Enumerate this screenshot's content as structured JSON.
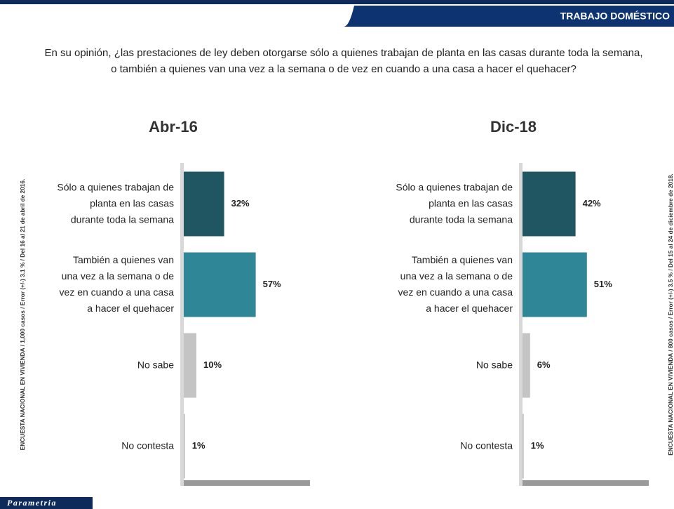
{
  "header": {
    "title": "TRABAJO DOMÉSTICO"
  },
  "question": "En su opinión, ¿las prestaciones de ley deben otorgarse sólo a quienes trabajan de planta en las casas durante toda la semana, o también a quienes van una vez a la semana o de vez en cuando a una casa a hacer el quehacer?",
  "notes": {
    "left": "ENCUESTA NACIONAL EN VIVIENDA / 1,000 casos / Error (+/-) 3.1 % / Del 16 al 21 de abril de 2016.",
    "right": "ENCUESTA NACIONAL EN VIVIENDA / 800 casos / Error (+/-) 3.5 % / Del 15 al 24 de diciembre de 2018."
  },
  "logo": "Parametria",
  "chart_data": [
    {
      "type": "bar",
      "orientation": "horizontal",
      "title": "Abr-16",
      "categories": [
        "Sólo a quienes trabajan de planta en las casas durante toda la semana",
        "También a quienes van una vez a la semana o de vez en cuando a una casa a hacer el quehacer",
        "No sabe",
        "No contesta"
      ],
      "values": [
        32,
        57,
        10,
        1
      ],
      "value_labels": [
        "32%",
        "57%",
        "10%",
        "1%"
      ],
      "colors": [
        "#1f5661",
        "#2e8696",
        "#c4c4c4",
        "#c4c4c4"
      ]
    },
    {
      "type": "bar",
      "orientation": "horizontal",
      "title": "Dic-18",
      "categories": [
        "Sólo a quienes trabajan de planta en las casas durante toda la semana",
        "También a quienes van una vez a la semana o de vez en cuando a una casa a hacer el quehacer",
        "No sabe",
        "No contesta"
      ],
      "values": [
        42,
        51,
        6,
        1
      ],
      "value_labels": [
        "42%",
        "51%",
        "6%",
        "1%"
      ],
      "colors": [
        "#1f5661",
        "#2e8696",
        "#c4c4c4",
        "#c4c4c4"
      ]
    }
  ]
}
